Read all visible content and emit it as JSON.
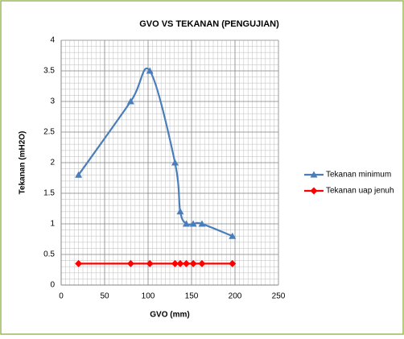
{
  "chart_data": {
    "type": "line",
    "title": "GVO VS TEKANAN (PENGUJIAN)",
    "x_label": "GVO (mm)",
    "y_label": "Tekanan (mH2O)",
    "series": [
      {
        "name": "Tekanan minimum",
        "color": "#4a7ebb",
        "marker": "triangle",
        "smooth": true,
        "x": [
          20,
          80,
          102,
          131,
          137,
          144,
          152,
          162,
          197
        ],
        "values": [
          1.8,
          3.0,
          3.5,
          2.0,
          1.2,
          1.0,
          1.0,
          1.0,
          0.8
        ]
      },
      {
        "name": "Tekanan uap jenuh",
        "color": "#ff0000",
        "marker": "diamond",
        "smooth": false,
        "x": [
          20,
          80,
          102,
          131,
          137,
          144,
          152,
          162,
          197
        ],
        "values": [
          0.35,
          0.35,
          0.35,
          0.35,
          0.35,
          0.35,
          0.35,
          0.35,
          0.35
        ]
      }
    ],
    "xlim": [
      0,
      250
    ],
    "xticks": [
      0,
      50,
      100,
      150,
      200,
      250
    ],
    "ylim": [
      0,
      4
    ],
    "yticks": [
      0,
      {
        "value": 0.5,
        "label": "0.5"
      },
      1,
      {
        "value": 1.5,
        "label": "1.5"
      },
      2,
      {
        "value": 2.5,
        "label": "2.5"
      },
      3,
      {
        "value": 3.5,
        "label": "3.5"
      },
      4
    ],
    "grid": true,
    "minor_grid": {
      "x": 5,
      "y": 0.1
    },
    "legend": "right"
  }
}
